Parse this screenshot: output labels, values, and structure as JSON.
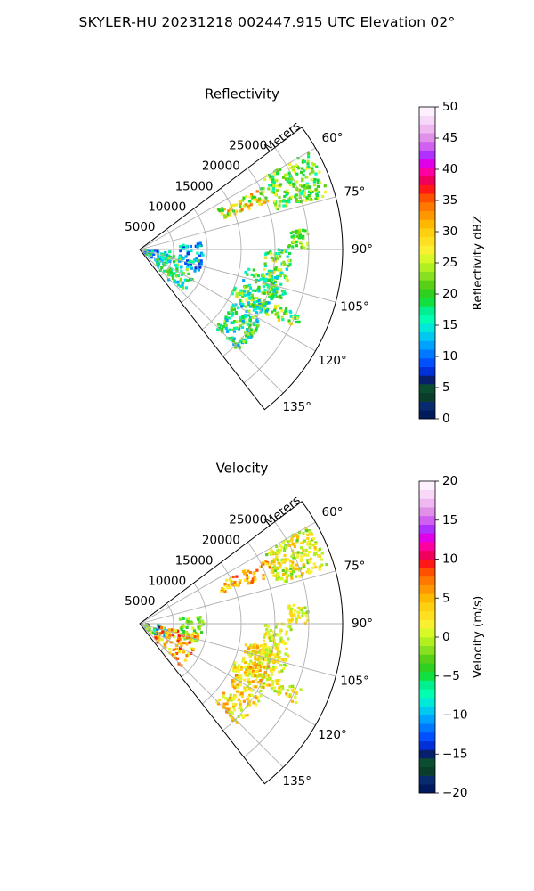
{
  "figure_title": "SKYLER-HU  20231218  002447.915 UTC Elevation 02°",
  "colors": {
    "grid": "#b0b0b0",
    "frame": "#000000"
  },
  "chart_data": [
    {
      "type": "heatmap",
      "projection": "polar-sector",
      "title": "Reflectivity",
      "radial_label": "Meters",
      "radial_ticks": [
        "5000",
        "10000",
        "15000",
        "20000",
        "25000"
      ],
      "radial_tick_values": [
        5000,
        10000,
        15000,
        20000,
        25000
      ],
      "rlim": [
        0,
        30000
      ],
      "theta_ticks": [
        "60°",
        "75°",
        "90°",
        "105°",
        "120°",
        "135°"
      ],
      "theta_tick_values": [
        60,
        75,
        90,
        105,
        120,
        135
      ],
      "thetalim": [
        53,
        142
      ],
      "grid": true,
      "colorbar": {
        "label": "Reflectivity dBZ",
        "range": [
          0,
          50
        ],
        "ticks": [
          "0",
          "5",
          "10",
          "15",
          "20",
          "25",
          "30",
          "35",
          "40",
          "45",
          "50"
        ],
        "tick_values": [
          0,
          5,
          10,
          15,
          20,
          25,
          30,
          35,
          40,
          45,
          50
        ],
        "colors": [
          "#001a5c",
          "#082a6e",
          "#0a3d2a",
          "#0b4d30",
          "#08206b",
          "#0030d8",
          "#0050ff",
          "#0078ff",
          "#00a2ff",
          "#00c8f0",
          "#00e8d8",
          "#00ffb0",
          "#00f090",
          "#10e040",
          "#30d020",
          "#58d018",
          "#88e020",
          "#b0f020",
          "#d8f828",
          "#f8f030",
          "#ffe020",
          "#ffd010",
          "#ffb800",
          "#ff9800",
          "#ff7800",
          "#ff5000",
          "#ff1818",
          "#f0005a",
          "#ff00a0",
          "#e000e8",
          "#b030ff",
          "#d060f0",
          "#e090e8",
          "#f0b8f0",
          "#f8d8f8",
          "#fff0ff"
        ]
      },
      "echoes": [
        {
          "az": [
            60,
            74
          ],
          "r": [
            21000,
            29000
          ],
          "value": 22,
          "spread": 6
        },
        {
          "az": [
            63,
            70
          ],
          "r": [
            13000,
            21000
          ],
          "value": 27,
          "spread": 8
        },
        {
          "az": [
            83,
            90
          ],
          "r": [
            22000,
            25000
          ],
          "value": 22,
          "spread": 4
        },
        {
          "az": [
            90,
            110
          ],
          "r": [
            18500,
            22500
          ],
          "value": 21,
          "spread": 8
        },
        {
          "az": [
            112,
            117
          ],
          "r": [
            15000,
            26000
          ],
          "value": 22,
          "spread": 8
        },
        {
          "az": [
            83,
            110
          ],
          "r": [
            6000,
            9500
          ],
          "value": 12,
          "spread": 5
        },
        {
          "az": [
            93,
            125
          ],
          "r": [
            800,
            4500
          ],
          "value": 14,
          "spread": 6
        },
        {
          "az": [
            100,
            136
          ],
          "r": [
            3000,
            9000
          ],
          "value": 18,
          "spread": 7
        },
        {
          "az": [
            100,
            136
          ],
          "r": [
            16000,
            21000
          ],
          "value": 18,
          "spread": 7
        }
      ]
    },
    {
      "type": "heatmap",
      "projection": "polar-sector",
      "title": "Velocity",
      "radial_label": "Meters",
      "radial_ticks": [
        "5000",
        "10000",
        "15000",
        "20000",
        "25000"
      ],
      "radial_tick_values": [
        5000,
        10000,
        15000,
        20000,
        25000
      ],
      "rlim": [
        0,
        30000
      ],
      "theta_ticks": [
        "60°",
        "75°",
        "90°",
        "105°",
        "120°",
        "135°"
      ],
      "theta_tick_values": [
        60,
        75,
        90,
        105,
        120,
        135
      ],
      "thetalim": [
        53,
        142
      ],
      "grid": true,
      "colorbar": {
        "label": "Velocity (m/s)",
        "range": [
          -20,
          20
        ],
        "ticks": [
          "−20",
          "−15",
          "−10",
          "−5",
          "0",
          "5",
          "10",
          "15",
          "20"
        ],
        "tick_values": [
          -20,
          -15,
          -10,
          -5,
          0,
          5,
          10,
          15,
          20
        ],
        "colors": [
          "#001a5c",
          "#082a6e",
          "#0a3d2a",
          "#0b4d30",
          "#08206b",
          "#0030d8",
          "#0050ff",
          "#0078ff",
          "#00a2ff",
          "#00c8f0",
          "#00e8d8",
          "#00ffb0",
          "#00f090",
          "#10e040",
          "#30d020",
          "#58d018",
          "#88e020",
          "#b0f020",
          "#d8f828",
          "#f8f030",
          "#ffe020",
          "#ffd010",
          "#ffb800",
          "#ff9800",
          "#ff7800",
          "#ff5000",
          "#ff1818",
          "#f0005a",
          "#ff00a0",
          "#e000e8",
          "#b030ff",
          "#d060f0",
          "#e090e8",
          "#f0b8f0",
          "#f8d8f8",
          "#fff0ff"
        ]
      },
      "echoes": [
        {
          "az": [
            60,
            74
          ],
          "r": [
            21000,
            29000
          ],
          "value": 1,
          "spread": 4
        },
        {
          "az": [
            63,
            70
          ],
          "r": [
            13000,
            21000
          ],
          "value": 5,
          "spread": 4
        },
        {
          "az": [
            83,
            90
          ],
          "r": [
            22000,
            25000
          ],
          "value": 1,
          "spread": 3
        },
        {
          "az": [
            90,
            110
          ],
          "r": [
            18500,
            22500
          ],
          "value": 1,
          "spread": 3
        },
        {
          "az": [
            112,
            117
          ],
          "r": [
            15000,
            26000
          ],
          "value": 2,
          "spread": 4
        },
        {
          "az": [
            83,
            110
          ],
          "r": [
            6000,
            9500
          ],
          "value": -2,
          "spread": 3
        },
        {
          "az": [
            93,
            125
          ],
          "r": [
            800,
            4500
          ],
          "value": -6,
          "spread": 12
        },
        {
          "az": [
            100,
            136
          ],
          "r": [
            3000,
            9000
          ],
          "value": 5,
          "spread": 5
        },
        {
          "az": [
            100,
            136
          ],
          "r": [
            16000,
            21000
          ],
          "value": 3,
          "spread": 4
        }
      ]
    }
  ]
}
